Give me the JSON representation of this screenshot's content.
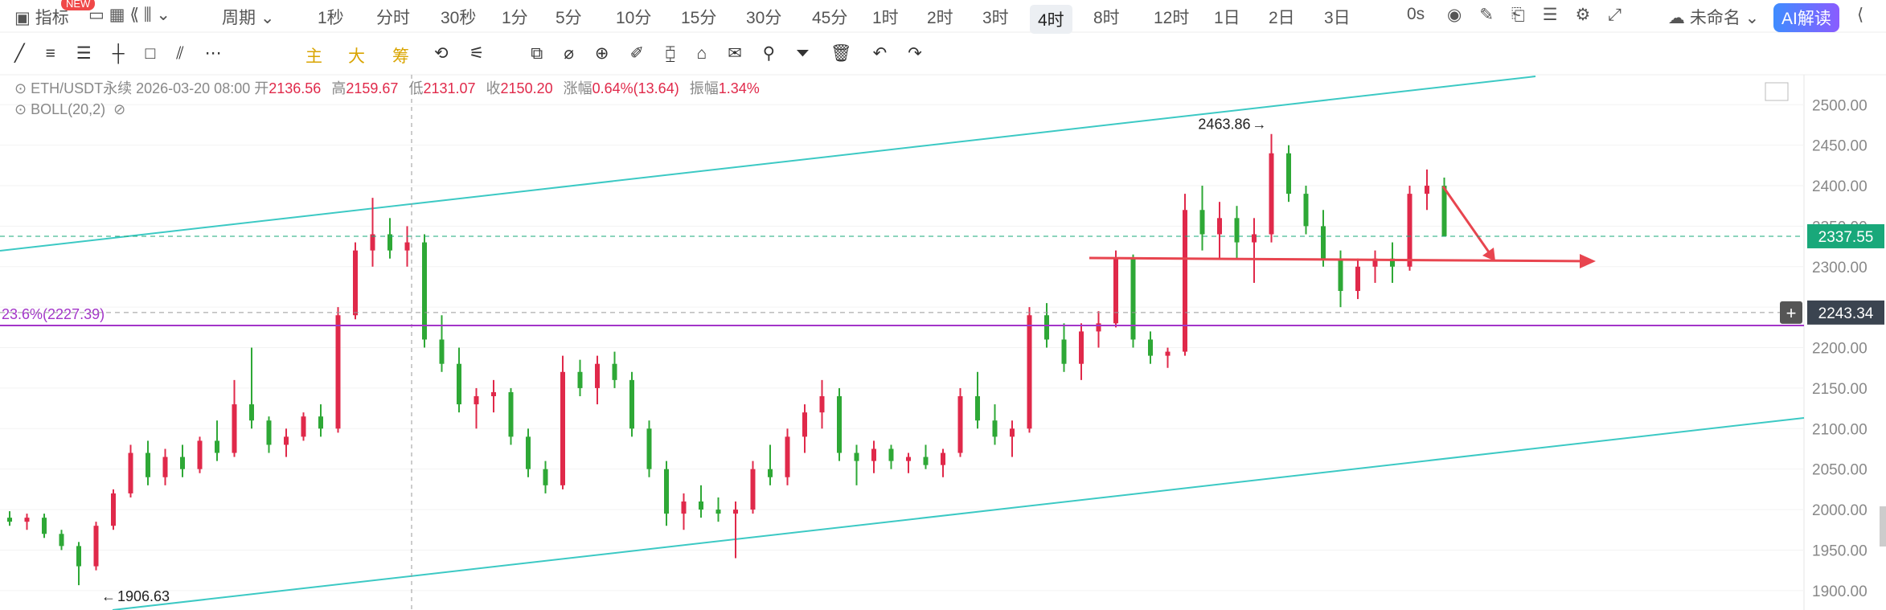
{
  "toolbar": {
    "indicator": "指标",
    "badge": "NEW",
    "period": "周期",
    "intervals": [
      "1秒",
      "分时",
      "30秒",
      "1分",
      "5分",
      "10分",
      "15分",
      "30分",
      "45分",
      "1时",
      "2时",
      "3时",
      "4时",
      "8时",
      "12时",
      "1日",
      "2日",
      "3日"
    ],
    "active_interval": 12,
    "countdown": "0s",
    "layout_name": "未命名",
    "ai": "AI解读"
  },
  "drawing_tools": {
    "main": "主",
    "big": "大",
    "chips": "筹"
  },
  "legend": {
    "symbol": "ETH/USDT永续",
    "time": "2026-03-20 08:00",
    "open_label": "开",
    "open": "2136.56",
    "high_label": "高",
    "high": "2159.67",
    "low_label": "低",
    "low": "2131.07",
    "close_label": "收",
    "close": "2150.20",
    "change_label": "涨幅",
    "change": "0.64%(13.64)",
    "amplitude_label": "振幅",
    "amplitude": "1.34%",
    "indicator": "BOLL(20,2)"
  },
  "chart_data": {
    "type": "candlestick",
    "up_color": "#e0294a",
    "down_color": "#2ea836",
    "ylim": [
      1876,
      2537
    ],
    "yticks": [
      {
        "value": 1900,
        "label": "1900.00"
      },
      {
        "value": 1950,
        "label": "1950.00"
      },
      {
        "value": 2000,
        "label": "2000.00"
      },
      {
        "value": 2050,
        "label": "2050.00"
      },
      {
        "value": 2100,
        "label": "2100.00"
      },
      {
        "value": 2150,
        "label": "2150.00"
      },
      {
        "value": 2200,
        "label": "2200.00"
      },
      {
        "value": 2250,
        "label": "2250.00"
      },
      {
        "value": 2300,
        "label": "2300.00"
      },
      {
        "value": 2350,
        "label": "2350.00"
      },
      {
        "value": 2400,
        "label": "2400.00"
      },
      {
        "value": 2450,
        "label": "2450.00"
      },
      {
        "value": 2500,
        "label": "2500.00"
      }
    ],
    "open": [
      1990,
      1985,
      1990,
      1970,
      1955,
      1930,
      1980,
      2020,
      2070,
      2040,
      2065,
      2050,
      2085,
      2070,
      2130,
      2110,
      2080,
      2090,
      2115,
      2100,
      2240,
      2320,
      2340,
      2320,
      2330,
      2210,
      2180,
      2130,
      2140,
      2145,
      2090,
      2050,
      2030,
      2170,
      2150,
      2180,
      2160,
      2100,
      2050,
      1995,
      2010,
      2000,
      1995,
      2000,
      2050,
      2040,
      2090,
      2120,
      2140,
      2070,
      2060,
      2075,
      2060,
      2065,
      2055,
      2070,
      2140,
      2110,
      2090,
      2100,
      2240,
      2210,
      2180,
      2220,
      2230,
      2310,
      2210,
      2190,
      2195,
      2370,
      2340,
      2360,
      2330,
      2340,
      2440,
      2390,
      2350,
      2310,
      2270,
      2300,
      2310,
      2300,
      2390,
      2400
    ],
    "high": [
      1998,
      1995,
      1995,
      1975,
      1960,
      1985,
      2025,
      2080,
      2085,
      2075,
      2080,
      2090,
      2110,
      2160,
      2200,
      2115,
      2100,
      2120,
      2130,
      2250,
      2330,
      2385,
      2360,
      2350,
      2340,
      2240,
      2200,
      2150,
      2160,
      2150,
      2100,
      2060,
      2190,
      2185,
      2190,
      2195,
      2170,
      2110,
      2060,
      2020,
      2030,
      2015,
      2010,
      2060,
      2080,
      2100,
      2130,
      2160,
      2150,
      2080,
      2085,
      2080,
      2070,
      2080,
      2075,
      2150,
      2170,
      2130,
      2110,
      2250,
      2255,
      2230,
      2230,
      2245,
      2320,
      2315,
      2220,
      2200,
      2390,
      2400,
      2380,
      2375,
      2360,
      2463.86,
      2450,
      2400,
      2370,
      2320,
      2310,
      2320,
      2330,
      2400,
      2420,
      2410
    ],
    "low": [
      1980,
      1975,
      1965,
      1950,
      1906.63,
      1925,
      1975,
      2015,
      2030,
      2030,
      2040,
      2045,
      2060,
      2065,
      2100,
      2070,
      2065,
      2085,
      2090,
      2095,
      2235,
      2300,
      2310,
      2300,
      2200,
      2170,
      2120,
      2100,
      2120,
      2080,
      2040,
      2020,
      2025,
      2140,
      2130,
      2150,
      2090,
      2040,
      1980,
      1975,
      1990,
      1985,
      1940,
      1995,
      2030,
      2030,
      2070,
      2100,
      2060,
      2030,
      2045,
      2050,
      2045,
      2050,
      2040,
      2065,
      2100,
      2080,
      2065,
      2095,
      2200,
      2170,
      2160,
      2200,
      2225,
      2200,
      2180,
      2175,
      2190,
      2320,
      2310,
      2310,
      2280,
      2330,
      2380,
      2340,
      2300,
      2250,
      2260,
      2280,
      2280,
      2295,
      2370,
      2337.55
    ],
    "close": [
      1985,
      1990,
      1970,
      1955,
      1930,
      1980,
      2020,
      2070,
      2040,
      2065,
      2050,
      2085,
      2070,
      2130,
      2110,
      2080,
      2090,
      2115,
      2100,
      2240,
      2320,
      2340,
      2320,
      2330,
      2210,
      2180,
      2130,
      2140,
      2145,
      2090,
      2050,
      2030,
      2170,
      2150,
      2180,
      2160,
      2100,
      2050,
      1995,
      2010,
      2000,
      1995,
      2000,
      2050,
      2040,
      2090,
      2120,
      2140,
      2070,
      2060,
      2075,
      2060,
      2065,
      2055,
      2070,
      2140,
      2110,
      2090,
      2100,
      2240,
      2210,
      2180,
      2220,
      2230,
      2310,
      2210,
      2190,
      2195,
      2370,
      2340,
      2360,
      2330,
      2340,
      2440,
      2390,
      2350,
      2310,
      2270,
      2300,
      2310,
      2300,
      2390,
      2400,
      2337.55
    ],
    "max_label": 2463.86,
    "min_label": 1906.63,
    "max_index": 73,
    "min_index": 4,
    "last_price": 2337.55,
    "cursor_price": 2243.34,
    "fib_line": {
      "label": "23.6%(2227.39)",
      "value": 2227.39,
      "color": "#a335c9"
    }
  }
}
